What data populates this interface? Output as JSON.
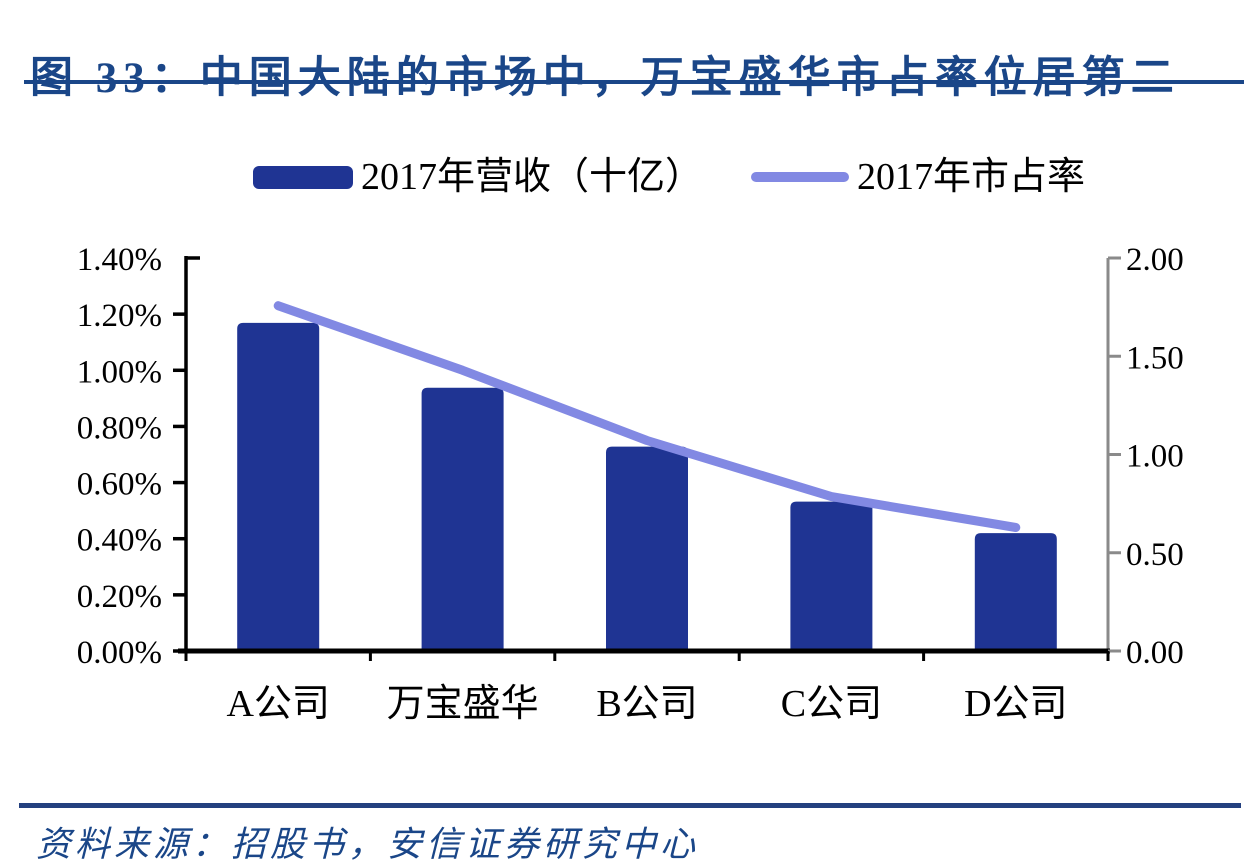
{
  "header": {
    "title": "图 33：中国大陆的市场中，万宝盛华市占率位居第二"
  },
  "legend": [
    {
      "label": "2017年营收（十亿）",
      "marker": "bar-swatch-icon",
      "color": "#1F3493"
    },
    {
      "label": "2017年市占率",
      "marker": "line-swatch-icon",
      "color": "#8289E3"
    }
  ],
  "chart_data": {
    "type": "bar",
    "subtype": "combo bar+line, dual y-axis",
    "title": "中国大陆的市场中，万宝盛华市占率位居第二",
    "categories": [
      "A公司",
      "万宝盛华",
      "B公司",
      "C公司",
      "D公司"
    ],
    "series": [
      {
        "name": "2017年营收（十亿）",
        "type": "bar",
        "axis": "right",
        "color": "#1F3493",
        "values": [
          1.67,
          1.34,
          1.04,
          0.76,
          0.6
        ]
      },
      {
        "name": "2017年市占率",
        "type": "line",
        "axis": "left",
        "color": "#8289E3",
        "unit": "%",
        "values": [
          1.23,
          1.0,
          0.75,
          0.55,
          0.44
        ]
      }
    ],
    "left_axis": {
      "unit": "%",
      "min": 0,
      "max": 1.4,
      "tick_step": 0.2,
      "tick_labels_bottom_up": [
        "0.00%",
        "0.20%",
        "0.40%",
        "0.60%",
        "0.80%",
        "1.00%",
        "1.20%",
        "1.40%"
      ]
    },
    "right_axis": {
      "min": 0,
      "max": 2.0,
      "tick_step": 0.5,
      "tick_labels_bottom_up": [
        "0.00",
        "0.50",
        "1.00",
        "1.50",
        "2.00"
      ]
    },
    "grid": false,
    "legend_position": "top"
  },
  "footer": {
    "source": "资料来源：招股书，安信证券研究中心"
  },
  "colors": {
    "title_text": "#1A4688",
    "title_rule": "#1A4688",
    "footer_text": "#1A4688",
    "footer_rule": "#23407F",
    "axis_black": "#000000",
    "right_axis_gray": "#8A8A8A",
    "background": "#FFFFFF"
  }
}
